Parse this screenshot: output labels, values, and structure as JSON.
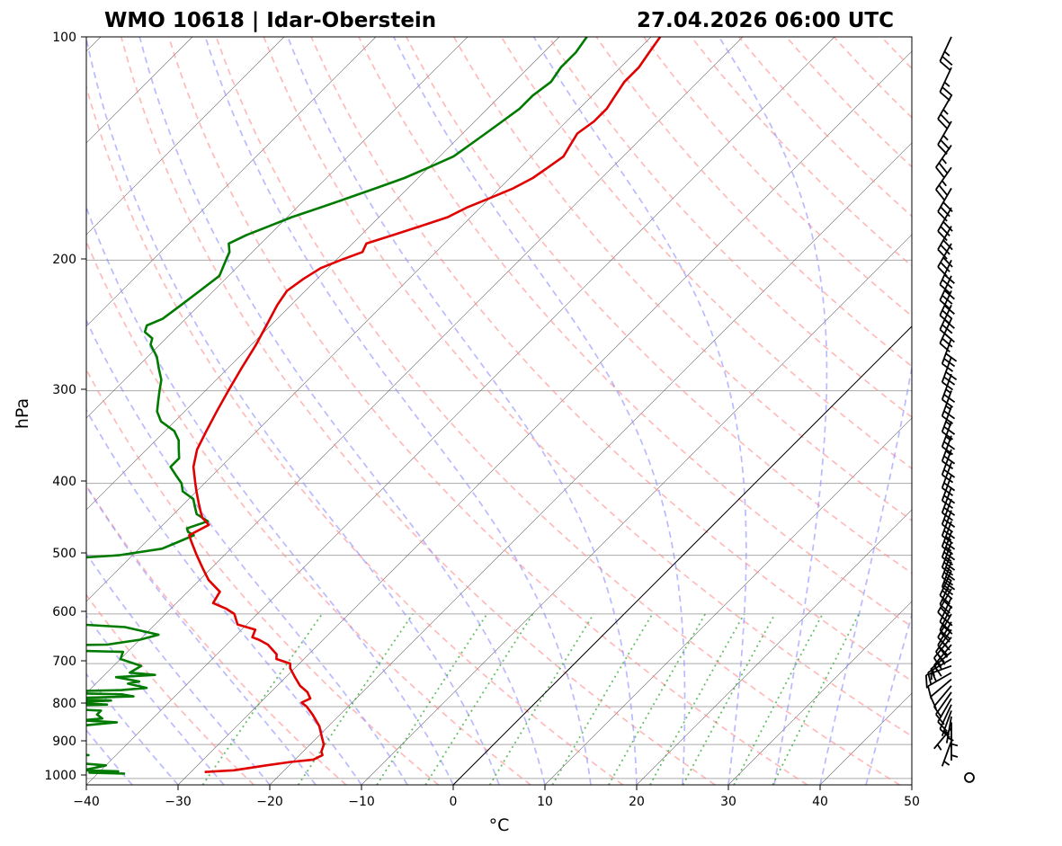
{
  "header": {
    "station": "WMO 10618 | Idar-Oberstein",
    "valid_time": "27.04.2026 06:00 UTC"
  },
  "colors": {
    "temperature": "#e00000",
    "dewpoint": "#007a00",
    "dry_adiabat": "#ff8c8c",
    "moist_adiabat": "#8c8cff",
    "mixing_ratio": "#33aa33",
    "isotherm": "#555555",
    "isobar": "#aaaaaa",
    "barb": "#000000"
  },
  "chart_data": {
    "type": "line",
    "title": "WMO 10618 | Idar-Oberstein  27.04.2026 06:00 UTC",
    "xlabel": "°C",
    "ylabel": "hPa",
    "xlim": [
      -40,
      50
    ],
    "ylim": [
      1020,
      100
    ],
    "x_ticks": [
      "−40",
      "−30",
      "−20",
      "−10",
      "0",
      "10",
      "20",
      "30",
      "40",
      "50"
    ],
    "y_ticks": [
      "100",
      "200",
      "300",
      "400",
      "500",
      "600",
      "700",
      "800",
      "900",
      "1000"
    ],
    "grid": "isobars",
    "zero_isotherm_highlight": true,
    "series": [
      {
        "name": "Temperature",
        "pressure": [
          980,
          975,
          960,
          950,
          943,
          930,
          920,
          900,
          880,
          850,
          820,
          800,
          790,
          780,
          765,
          750,
          730,
          710,
          700,
          690,
          680,
          660,
          650,
          645,
          630,
          620,
          600,
          590,
          580,
          560,
          540,
          520,
          500,
          480,
          470,
          455,
          445,
          435,
          425,
          410,
          400,
          380,
          360,
          340,
          320,
          300,
          280,
          260,
          240,
          230,
          220,
          212,
          205,
          200,
          195,
          190,
          185,
          180,
          175,
          170,
          165,
          160,
          155,
          150,
          145,
          140,
          135,
          130,
          125,
          120,
          115,
          110,
          105,
          100
        ],
        "values": [
          -28.5,
          -25.5,
          -22.5,
          -20.2,
          -18.0,
          -17.5,
          -18.0,
          -18.5,
          -19.5,
          -21.0,
          -23.0,
          -24.5,
          -25.5,
          -25.0,
          -26.0,
          -27.5,
          -29.0,
          -30.5,
          -31.0,
          -33.0,
          -33.5,
          -35.5,
          -37.0,
          -38.0,
          -38.5,
          -41.0,
          -42.5,
          -44.0,
          -46.0,
          -46.5,
          -49.0,
          -51.0,
          -53.0,
          -55.0,
          -56.0,
          -55.0,
          -56.5,
          -57.5,
          -58.5,
          -60.0,
          -61.0,
          -63.0,
          -64.5,
          -65.5,
          -66.5,
          -67.5,
          -68.5,
          -69.5,
          -70.8,
          -71.5,
          -72.0,
          -71.5,
          -70.8,
          -69.5,
          -68.0,
          -68.5,
          -66.5,
          -64.5,
          -62.5,
          -61.5,
          -60.0,
          -58.5,
          -57.5,
          -57.0,
          -56.5,
          -57.0,
          -57.5,
          -57.0,
          -57.0,
          -57.5,
          -58.0,
          -58.0,
          -58.5,
          -59.0
        ]
      },
      {
        "name": "Dewpoint",
        "pressure": [
          985,
          982,
          978,
          975,
          968,
          960,
          950,
          935,
          930,
          925,
          915,
          905,
          895,
          880,
          870,
          860,
          850,
          840,
          835,
          830,
          820,
          810,
          800,
          795,
          790,
          785,
          780,
          775,
          770,
          765,
          760,
          755,
          745,
          740,
          730,
          725,
          720,
          705,
          690,
          675,
          665,
          660,
          650,
          640,
          625,
          610,
          600,
          590,
          580,
          565,
          555,
          545,
          535,
          528,
          520,
          510,
          500,
          490,
          480,
          470,
          465,
          460,
          450,
          440,
          430,
          420,
          410,
          400,
          390,
          380,
          370,
          360,
          350,
          340,
          330,
          320,
          310,
          300,
          290,
          280,
          270,
          260,
          255,
          250,
          245,
          240,
          230,
          220,
          210,
          200,
          195,
          190,
          185,
          180,
          175,
          170,
          165,
          160,
          155,
          150,
          145,
          140,
          135,
          130,
          125,
          120,
          115,
          110,
          105,
          100
        ],
        "values": [
          -37.0,
          -41.0,
          -38.0,
          -42.0,
          -41.0,
          -40.0,
          -45.0,
          -48.0,
          -43.0,
          -47.0,
          -46.0,
          -48.5,
          -50.0,
          -51.0,
          -48.0,
          -47.5,
          -47.5,
          -43.5,
          -47.5,
          -45.5,
          -46.5,
          -46.5,
          -56.0,
          -46.5,
          -51.0,
          -46.5,
          -52.5,
          -44.5,
          -46.0,
          -56.5,
          -46.5,
          -44.0,
          -46.5,
          -45.5,
          -48.5,
          -44.5,
          -47.5,
          -47.0,
          -50.0,
          -50.5,
          -72.0,
          -53.0,
          -50.0,
          -48.5,
          -53.0,
          -68.5,
          -66.5,
          -66.0,
          -67.5,
          -68.5,
          -66.5,
          -67.5,
          -73.5,
          -71.0,
          -73.0,
          -71.5,
          -61.5,
          -57.5,
          -56.5,
          -55.5,
          -56.5,
          -57.0,
          -55.5,
          -57.5,
          -58.5,
          -59.5,
          -61.5,
          -62.5,
          -64.0,
          -65.5,
          -65.5,
          -66.5,
          -67.5,
          -69.0,
          -71.5,
          -73.0,
          -74.0,
          -75.0,
          -76.0,
          -77.5,
          -79.0,
          -81.0,
          -81.5,
          -83.0,
          -83.5,
          -82.5,
          -82.0,
          -81.5,
          -81.0,
          -82.0,
          -82.5,
          -83.5,
          -82.5,
          -81.0,
          -79.5,
          -77.5,
          -75.5,
          -73.5,
          -71.5,
          -70.0,
          -68.5,
          -68.0,
          -67.5,
          -67.0,
          -66.5,
          -66.5,
          -66.0,
          -66.5,
          -66.5,
          -67.0
        ]
      }
    ],
    "wind_barbs": {
      "pressure": [
        930,
        890,
        870,
        855,
        840,
        825,
        810,
        795,
        780,
        765,
        750,
        735,
        720,
        705,
        690,
        675,
        660,
        645,
        630,
        615,
        600,
        585,
        570,
        555,
        540,
        525,
        510,
        495,
        480,
        465,
        450,
        435,
        420,
        405,
        390,
        375,
        360,
        345,
        330,
        315,
        300,
        285,
        270,
        255,
        240,
        230,
        220,
        210,
        200,
        190,
        180,
        170,
        160,
        150,
        140,
        130,
        120,
        110,
        100
      ],
      "direction_deg": [
        0,
        200,
        180,
        220,
        180,
        190,
        200,
        205,
        210,
        215,
        220,
        230,
        240,
        250,
        240,
        230,
        220,
        220,
        215,
        210,
        210,
        205,
        205,
        210,
        205,
        205,
        200,
        200,
        200,
        200,
        200,
        200,
        200,
        200,
        200,
        200,
        200,
        200,
        200,
        200,
        200,
        200,
        200,
        200,
        205,
        205,
        205,
        205,
        205,
        210,
        210,
        210,
        210,
        215,
        215,
        210,
        210,
        205,
        205
      ],
      "speed_kt": [
        0,
        5,
        5,
        5,
        5,
        5,
        5,
        10,
        10,
        10,
        10,
        10,
        10,
        15,
        15,
        15,
        15,
        20,
        20,
        20,
        20,
        20,
        25,
        20,
        20,
        25,
        25,
        25,
        25,
        25,
        25,
        20,
        20,
        20,
        20,
        20,
        20,
        25,
        25,
        25,
        25,
        25,
        30,
        30,
        30,
        30,
        30,
        30,
        30,
        30,
        30,
        30,
        30,
        25,
        25,
        25,
        25,
        25,
        25
      ]
    }
  }
}
